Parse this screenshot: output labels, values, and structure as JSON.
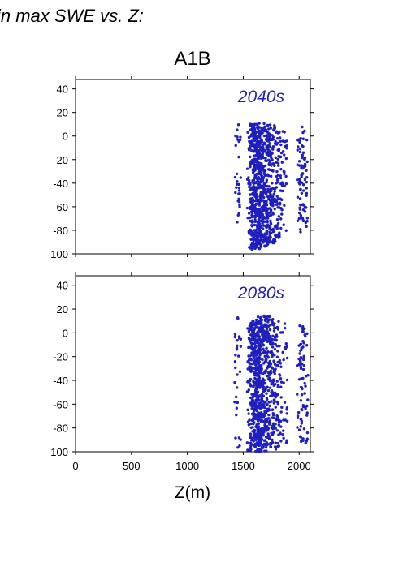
{
  "figure": {
    "header_text": "in max SWE vs. Z:",
    "scenario_title": "A1B",
    "xlabel": "Z(m)"
  },
  "colors": {
    "points": "#1f1fbf",
    "panel_label": "#1f1fbf",
    "axis": "#000000"
  },
  "chart_data": [
    {
      "type": "scatter",
      "panel_label": "2040s",
      "xlim": [
        0,
        2100
      ],
      "ylim": [
        -100,
        48
      ],
      "xticks": [
        0,
        500,
        1000,
        1500,
        2000
      ],
      "yticks": [
        40,
        20,
        0,
        -20,
        -40,
        -60,
        -80,
        -100
      ],
      "x_tick_labels_shown": false,
      "grid": false,
      "point_columns": [
        {
          "x": 1450,
          "ymin": -75,
          "ymax": 10,
          "n": 30
        },
        {
          "x": 1565,
          "ymin": -95,
          "ymax": 10,
          "n": 35
        },
        {
          "x": 1575,
          "ymin": -96,
          "ymax": 11,
          "n": 40
        },
        {
          "x": 1590,
          "ymin": -97,
          "ymax": 11,
          "n": 70
        },
        {
          "x": 1605,
          "ymin": -96,
          "ymax": 11,
          "n": 80
        },
        {
          "x": 1620,
          "ymin": -97,
          "ymax": 11,
          "n": 80
        },
        {
          "x": 1635,
          "ymin": -95,
          "ymax": 11,
          "n": 80
        },
        {
          "x": 1650,
          "ymin": -94,
          "ymax": 11,
          "n": 70
        },
        {
          "x": 1665,
          "ymin": -92,
          "ymax": 10,
          "n": 60
        },
        {
          "x": 1685,
          "ymin": -94,
          "ymax": 11,
          "n": 60
        },
        {
          "x": 1700,
          "ymin": -92,
          "ymax": 11,
          "n": 60
        },
        {
          "x": 1720,
          "ymin": -92,
          "ymax": 10,
          "n": 55
        },
        {
          "x": 1740,
          "ymin": -90,
          "ymax": 10,
          "n": 45
        },
        {
          "x": 1760,
          "ymin": -92,
          "ymax": 10,
          "n": 45
        },
        {
          "x": 1785,
          "ymin": -90,
          "ymax": 10,
          "n": 35
        },
        {
          "x": 1810,
          "ymin": -88,
          "ymax": 9,
          "n": 30
        },
        {
          "x": 1830,
          "ymin": -86,
          "ymax": 9,
          "n": 28
        },
        {
          "x": 1865,
          "ymin": -85,
          "ymax": 9,
          "n": 25
        },
        {
          "x": 2010,
          "ymin": -83,
          "ymax": 8,
          "n": 28
        },
        {
          "x": 2030,
          "ymin": -82,
          "ymax": 8,
          "n": 28
        },
        {
          "x": 2050,
          "ymin": -80,
          "ymax": 8,
          "n": 28
        }
      ]
    },
    {
      "type": "scatter",
      "panel_label": "2080s",
      "xlim": [
        0,
        2100
      ],
      "ylim": [
        -100,
        48
      ],
      "xticks": [
        0,
        500,
        1000,
        1500,
        2000
      ],
      "yticks": [
        40,
        20,
        0,
        -20,
        -40,
        -60,
        -80,
        -100
      ],
      "x_tick_labels_shown": true,
      "grid": false,
      "point_columns": [
        {
          "x": 1450,
          "ymin": -98,
          "ymax": 13,
          "n": 30
        },
        {
          "x": 1565,
          "ymin": -99,
          "ymax": 8,
          "n": 40
        },
        {
          "x": 1575,
          "ymin": -100,
          "ymax": 10,
          "n": 45
        },
        {
          "x": 1590,
          "ymin": -100,
          "ymax": 10,
          "n": 75
        },
        {
          "x": 1605,
          "ymin": -100,
          "ymax": 10,
          "n": 80
        },
        {
          "x": 1620,
          "ymin": -100,
          "ymax": 12,
          "n": 80
        },
        {
          "x": 1635,
          "ymin": -100,
          "ymax": 12,
          "n": 80
        },
        {
          "x": 1650,
          "ymin": -100,
          "ymax": 14,
          "n": 75
        },
        {
          "x": 1665,
          "ymin": -100,
          "ymax": 14,
          "n": 65
        },
        {
          "x": 1685,
          "ymin": -100,
          "ymax": 15,
          "n": 65
        },
        {
          "x": 1700,
          "ymin": -100,
          "ymax": 15,
          "n": 60
        },
        {
          "x": 1720,
          "ymin": -100,
          "ymax": 14,
          "n": 55
        },
        {
          "x": 1740,
          "ymin": -99,
          "ymax": 12,
          "n": 45
        },
        {
          "x": 1760,
          "ymin": -100,
          "ymax": 12,
          "n": 45
        },
        {
          "x": 1785,
          "ymin": -98,
          "ymax": 10,
          "n": 35
        },
        {
          "x": 1810,
          "ymin": -97,
          "ymax": 10,
          "n": 30
        },
        {
          "x": 1830,
          "ymin": -96,
          "ymax": 10,
          "n": 28
        },
        {
          "x": 1865,
          "ymin": -95,
          "ymax": 9,
          "n": 25
        },
        {
          "x": 2010,
          "ymin": -95,
          "ymax": 9,
          "n": 28
        },
        {
          "x": 2030,
          "ymin": -95,
          "ymax": 9,
          "n": 28
        },
        {
          "x": 2050,
          "ymin": -94,
          "ymax": 9,
          "n": 28
        }
      ]
    }
  ]
}
